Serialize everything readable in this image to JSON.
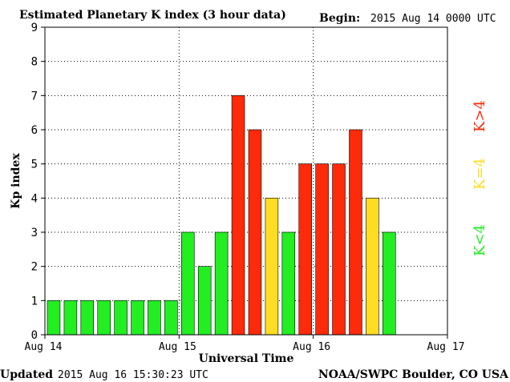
{
  "chart_data": {
    "type": "bar",
    "title": "Estimated Planetary K index (3 hour data)",
    "begin_label": "Begin:",
    "begin_value": "2015 Aug 14 0000 UTC",
    "ylabel": "Kp index",
    "xlabel": "Universal Time",
    "ylim": [
      0,
      9
    ],
    "yticks": [
      "0",
      "1",
      "2",
      "3",
      "4",
      "5",
      "6",
      "7",
      "8",
      "9"
    ],
    "xticks": [
      "Aug 14",
      "Aug 15",
      "Aug 16",
      "Aug 17"
    ],
    "grid": true,
    "values": [
      1,
      1,
      1,
      1,
      1,
      1,
      1,
      1,
      3,
      2,
      3,
      7,
      6,
      4,
      3,
      5,
      5,
      5,
      6,
      4,
      3
    ],
    "legend": [
      {
        "label": "K<4",
        "color": "#22ee22"
      },
      {
        "label": "K=4",
        "color": "#ffdd22"
      },
      {
        "label": "K>4",
        "color": "#ff2a0a"
      }
    ],
    "legend_placement": "right",
    "colors": {
      "low": "#22ee22",
      "mid": "#ffdd22",
      "high": "#ff2a0a"
    }
  },
  "footer": {
    "updated_label": "Updated",
    "updated_value": "2015 Aug 16 15:30:23 UTC",
    "source": "NOAA/SWPC Boulder, CO USA"
  }
}
